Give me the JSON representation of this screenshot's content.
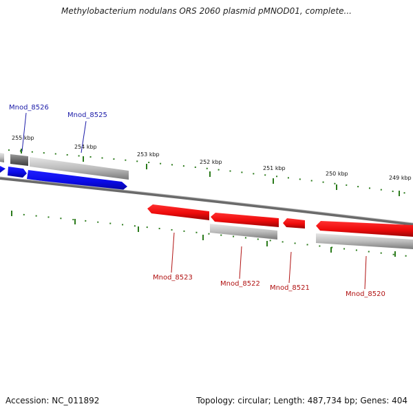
{
  "title": "Methylobacterium nodulans ORS 2060 plasmid pMNOD01, complete...",
  "footer": {
    "accession": "Accession: NC_011892",
    "summary": "Topology: circular; Length: 487,734 bp; Genes: 404"
  },
  "scale_labels": [
    "255 kbp",
    "254 kbp",
    "253 kbp",
    "252 kbp",
    "251 kbp",
    "250 kbp",
    "249 kbp"
  ],
  "genes_forward": [
    {
      "name": "Mnod_8526"
    },
    {
      "name": "Mnod_8525"
    }
  ],
  "genes_reverse": [
    {
      "name": "Mnod_8523"
    },
    {
      "name": "Mnod_8522"
    },
    {
      "name": "Mnod_8521"
    },
    {
      "name": "Mnod_8520"
    }
  ],
  "colors": {
    "forward_strand": "#1010e0",
    "reverse_strand": "#e01010",
    "forward_label": "#1a1aa8",
    "reverse_label": "#b01010",
    "tick": "#2a7a1a",
    "backbone": "#777777"
  }
}
